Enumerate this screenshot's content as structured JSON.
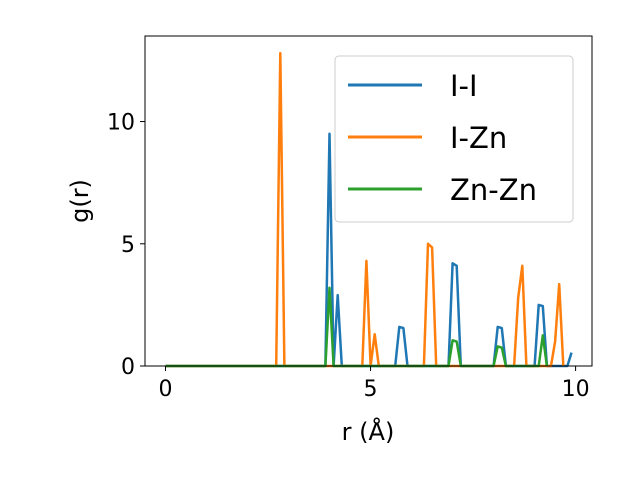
{
  "chart_data": {
    "type": "line",
    "title": "",
    "xlabel": "r (Å)",
    "ylabel": "g(r)",
    "xlim": [
      -0.5,
      10.4
    ],
    "ylim": [
      0,
      13.5
    ],
    "xticks": [
      0,
      5,
      10
    ],
    "yticks": [
      0,
      5,
      10
    ],
    "grid": false,
    "legend_position": "upper-right",
    "series": [
      {
        "name": "I-I",
        "color": "#1f77b4",
        "x": [
          0,
          3.8,
          3.9,
          4.0,
          4.1,
          4.2,
          4.3,
          5.6,
          5.7,
          5.8,
          5.9,
          6.9,
          7.0,
          7.1,
          7.2,
          8.0,
          8.1,
          8.2,
          8.3,
          9.0,
          9.1,
          9.2,
          9.3,
          9.8,
          9.9
        ],
        "y": [
          0,
          0,
          0,
          9.5,
          0,
          2.9,
          0,
          0,
          1.6,
          1.55,
          0,
          0,
          4.2,
          4.1,
          0,
          0,
          1.6,
          1.55,
          0,
          0,
          2.5,
          2.45,
          0,
          0,
          0.55
        ]
      },
      {
        "name": "I-Zn",
        "color": "#ff7f0e",
        "x": [
          0,
          2.7,
          2.8,
          2.9,
          4.8,
          4.9,
          5.0,
          5.1,
          5.2,
          6.3,
          6.4,
          6.5,
          6.6,
          8.5,
          8.6,
          8.7,
          8.8,
          9.4,
          9.5,
          9.6,
          9.7
        ],
        "y": [
          0,
          0,
          12.8,
          0,
          0,
          4.3,
          0,
          1.3,
          0,
          0,
          5.0,
          4.85,
          0,
          0,
          2.8,
          4.1,
          0,
          0,
          1.0,
          3.35,
          0
        ]
      },
      {
        "name": "Zn-Zn",
        "color": "#2ca02c",
        "x": [
          0,
          3.9,
          4.0,
          4.1,
          6.9,
          7.0,
          7.1,
          7.2,
          8.0,
          8.1,
          8.2,
          8.3,
          9.1,
          9.2,
          9.3
        ],
        "y": [
          0,
          0,
          3.2,
          0,
          0,
          1.05,
          1.0,
          0,
          0,
          0.8,
          0.75,
          0,
          0,
          1.25,
          0
        ]
      }
    ]
  }
}
